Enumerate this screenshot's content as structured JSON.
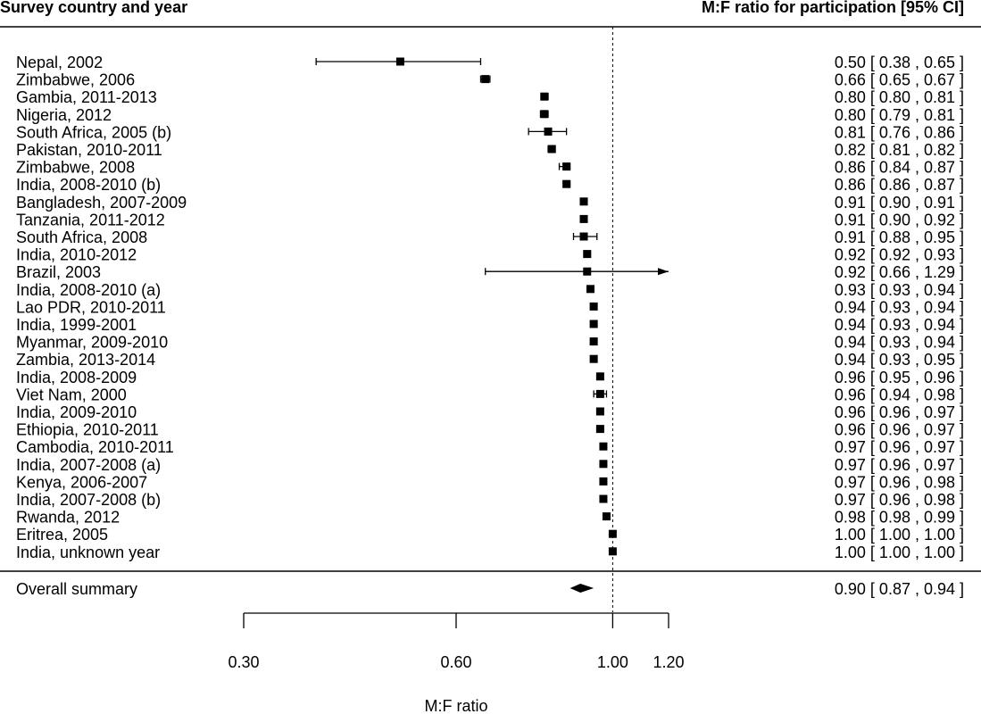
{
  "chart_data": {
    "type": "forest",
    "left_header": "Survey country and year",
    "right_header": "M:F ratio for participation [95% CI]",
    "xlabel": "M:F ratio",
    "x_scale": "log",
    "xlim": [
      0.3,
      1.2
    ],
    "x_ticks": [
      {
        "value": 0.3,
        "label": "0.30"
      },
      {
        "value": 0.6,
        "label": "0.60"
      },
      {
        "value": 1.0,
        "label": "1.00"
      },
      {
        "value": 1.2,
        "label": "1.20"
      }
    ],
    "reference_line": 1.0,
    "studies": [
      {
        "label": "Nepal, 2002",
        "est": 0.5,
        "lo": 0.38,
        "hi": 0.65,
        "text": "0.50 [ 0.38 , 0.65 ]"
      },
      {
        "label": "Zimbabwe, 2006",
        "est": 0.66,
        "lo": 0.65,
        "hi": 0.67,
        "text": "0.66 [ 0.65 , 0.67 ]"
      },
      {
        "label": "Gambia, 2011-2013",
        "est": 0.8,
        "lo": 0.8,
        "hi": 0.81,
        "text": "0.80 [ 0.80 , 0.81 ]"
      },
      {
        "label": "Nigeria, 2012",
        "est": 0.8,
        "lo": 0.79,
        "hi": 0.81,
        "text": "0.80 [ 0.79 , 0.81 ]"
      },
      {
        "label": "South Africa, 2005 (b)",
        "est": 0.81,
        "lo": 0.76,
        "hi": 0.86,
        "text": "0.81 [ 0.76 , 0.86 ]"
      },
      {
        "label": "Pakistan, 2010-2011",
        "est": 0.82,
        "lo": 0.81,
        "hi": 0.82,
        "text": "0.82 [ 0.81 , 0.82 ]"
      },
      {
        "label": "Zimbabwe, 2008",
        "est": 0.86,
        "lo": 0.84,
        "hi": 0.87,
        "text": "0.86 [ 0.84 , 0.87 ]"
      },
      {
        "label": "India, 2008-2010 (b)",
        "est": 0.86,
        "lo": 0.86,
        "hi": 0.87,
        "text": "0.86 [ 0.86 , 0.87 ]"
      },
      {
        "label": "Bangladesh, 2007-2009",
        "est": 0.91,
        "lo": 0.9,
        "hi": 0.91,
        "text": "0.91 [ 0.90 , 0.91 ]"
      },
      {
        "label": "Tanzania, 2011-2012",
        "est": 0.91,
        "lo": 0.9,
        "hi": 0.92,
        "text": "0.91 [ 0.90 , 0.92 ]"
      },
      {
        "label": "South Africa, 2008",
        "est": 0.91,
        "lo": 0.88,
        "hi": 0.95,
        "text": "0.91 [ 0.88 , 0.95 ]"
      },
      {
        "label": "India, 2010-2012",
        "est": 0.92,
        "lo": 0.92,
        "hi": 0.93,
        "text": "0.92 [ 0.92 , 0.93 ]"
      },
      {
        "label": "Brazil, 2003",
        "est": 0.92,
        "lo": 0.66,
        "hi": 1.29,
        "text": "0.92 [ 0.66 , 1.29 ]"
      },
      {
        "label": "India, 2008-2010 (a)",
        "est": 0.93,
        "lo": 0.93,
        "hi": 0.94,
        "text": "0.93 [ 0.93 , 0.94 ]"
      },
      {
        "label": "Lao PDR, 2010-2011",
        "est": 0.94,
        "lo": 0.93,
        "hi": 0.94,
        "text": "0.94 [ 0.93 , 0.94 ]"
      },
      {
        "label": "India, 1999-2001",
        "est": 0.94,
        "lo": 0.93,
        "hi": 0.94,
        "text": "0.94 [ 0.93 , 0.94 ]"
      },
      {
        "label": "Myanmar, 2009-2010",
        "est": 0.94,
        "lo": 0.93,
        "hi": 0.94,
        "text": "0.94 [ 0.93 , 0.94 ]"
      },
      {
        "label": "Zambia, 2013-2014",
        "est": 0.94,
        "lo": 0.93,
        "hi": 0.95,
        "text": "0.94 [ 0.93 , 0.95 ]"
      },
      {
        "label": "India, 2008-2009",
        "est": 0.96,
        "lo": 0.95,
        "hi": 0.96,
        "text": "0.96 [ 0.95 , 0.96 ]"
      },
      {
        "label": "Viet Nam, 2000",
        "est": 0.96,
        "lo": 0.94,
        "hi": 0.98,
        "text": "0.96 [ 0.94 , 0.98 ]"
      },
      {
        "label": "India, 2009-2010",
        "est": 0.96,
        "lo": 0.96,
        "hi": 0.97,
        "text": "0.96 [ 0.96 , 0.97 ]"
      },
      {
        "label": "Ethiopia, 2010-2011",
        "est": 0.96,
        "lo": 0.96,
        "hi": 0.97,
        "text": "0.96 [ 0.96 , 0.97 ]"
      },
      {
        "label": "Cambodia, 2010-2011",
        "est": 0.97,
        "lo": 0.96,
        "hi": 0.97,
        "text": "0.97 [ 0.96 , 0.97 ]"
      },
      {
        "label": "India, 2007-2008 (a)",
        "est": 0.97,
        "lo": 0.96,
        "hi": 0.97,
        "text": "0.97 [ 0.96 , 0.97 ]"
      },
      {
        "label": "Kenya, 2006-2007",
        "est": 0.97,
        "lo": 0.96,
        "hi": 0.98,
        "text": "0.97 [ 0.96 , 0.98 ]"
      },
      {
        "label": "India, 2007-2008 (b)",
        "est": 0.97,
        "lo": 0.96,
        "hi": 0.98,
        "text": "0.97 [ 0.96 , 0.98 ]"
      },
      {
        "label": "Rwanda, 2012",
        "est": 0.98,
        "lo": 0.98,
        "hi": 0.99,
        "text": "0.98 [ 0.98 , 0.99 ]"
      },
      {
        "label": "Eritrea, 2005",
        "est": 1.0,
        "lo": 1.0,
        "hi": 1.0,
        "text": "1.00 [ 1.00 , 1.00 ]"
      },
      {
        "label": "India, unknown year",
        "est": 1.0,
        "lo": 1.0,
        "hi": 1.0,
        "text": "1.00 [ 1.00 , 1.00 ]"
      }
    ],
    "summary": {
      "label": "Overall summary",
      "est": 0.9,
      "lo": 0.87,
      "hi": 0.94,
      "text": "0.90 [ 0.87 , 0.94 ]"
    }
  }
}
